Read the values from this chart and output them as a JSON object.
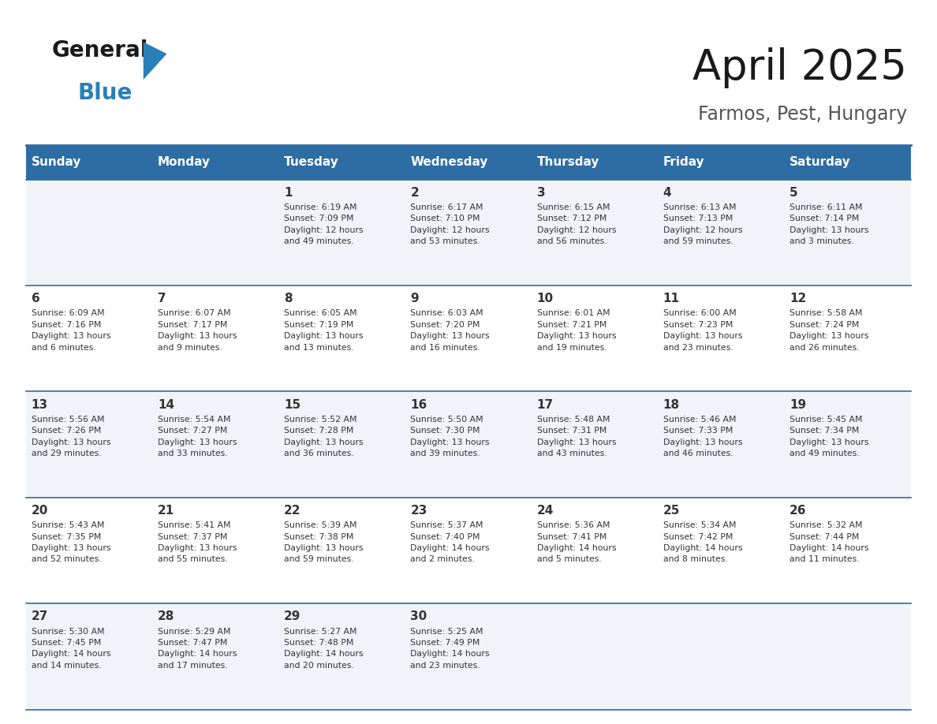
{
  "title": "April 2025",
  "subtitle": "Farmos, Pest, Hungary",
  "header_bg": "#2E6DA4",
  "header_text_color": "#FFFFFF",
  "days_of_week": [
    "Sunday",
    "Monday",
    "Tuesday",
    "Wednesday",
    "Thursday",
    "Friday",
    "Saturday"
  ],
  "row_bg_light": "#F0F4F8",
  "row_bg_white": "#FFFFFF",
  "cell_border_color": "#2E6DA4",
  "text_color": "#333333",
  "calendar": [
    [
      {
        "day": "",
        "info": ""
      },
      {
        "day": "",
        "info": ""
      },
      {
        "day": "1",
        "info": "Sunrise: 6:19 AM\nSunset: 7:09 PM\nDaylight: 12 hours\nand 49 minutes."
      },
      {
        "day": "2",
        "info": "Sunrise: 6:17 AM\nSunset: 7:10 PM\nDaylight: 12 hours\nand 53 minutes."
      },
      {
        "day": "3",
        "info": "Sunrise: 6:15 AM\nSunset: 7:12 PM\nDaylight: 12 hours\nand 56 minutes."
      },
      {
        "day": "4",
        "info": "Sunrise: 6:13 AM\nSunset: 7:13 PM\nDaylight: 12 hours\nand 59 minutes."
      },
      {
        "day": "5",
        "info": "Sunrise: 6:11 AM\nSunset: 7:14 PM\nDaylight: 13 hours\nand 3 minutes."
      }
    ],
    [
      {
        "day": "6",
        "info": "Sunrise: 6:09 AM\nSunset: 7:16 PM\nDaylight: 13 hours\nand 6 minutes."
      },
      {
        "day": "7",
        "info": "Sunrise: 6:07 AM\nSunset: 7:17 PM\nDaylight: 13 hours\nand 9 minutes."
      },
      {
        "day": "8",
        "info": "Sunrise: 6:05 AM\nSunset: 7:19 PM\nDaylight: 13 hours\nand 13 minutes."
      },
      {
        "day": "9",
        "info": "Sunrise: 6:03 AM\nSunset: 7:20 PM\nDaylight: 13 hours\nand 16 minutes."
      },
      {
        "day": "10",
        "info": "Sunrise: 6:01 AM\nSunset: 7:21 PM\nDaylight: 13 hours\nand 19 minutes."
      },
      {
        "day": "11",
        "info": "Sunrise: 6:00 AM\nSunset: 7:23 PM\nDaylight: 13 hours\nand 23 minutes."
      },
      {
        "day": "12",
        "info": "Sunrise: 5:58 AM\nSunset: 7:24 PM\nDaylight: 13 hours\nand 26 minutes."
      }
    ],
    [
      {
        "day": "13",
        "info": "Sunrise: 5:56 AM\nSunset: 7:26 PM\nDaylight: 13 hours\nand 29 minutes."
      },
      {
        "day": "14",
        "info": "Sunrise: 5:54 AM\nSunset: 7:27 PM\nDaylight: 13 hours\nand 33 minutes."
      },
      {
        "day": "15",
        "info": "Sunrise: 5:52 AM\nSunset: 7:28 PM\nDaylight: 13 hours\nand 36 minutes."
      },
      {
        "day": "16",
        "info": "Sunrise: 5:50 AM\nSunset: 7:30 PM\nDaylight: 13 hours\nand 39 minutes."
      },
      {
        "day": "17",
        "info": "Sunrise: 5:48 AM\nSunset: 7:31 PM\nDaylight: 13 hours\nand 43 minutes."
      },
      {
        "day": "18",
        "info": "Sunrise: 5:46 AM\nSunset: 7:33 PM\nDaylight: 13 hours\nand 46 minutes."
      },
      {
        "day": "19",
        "info": "Sunrise: 5:45 AM\nSunset: 7:34 PM\nDaylight: 13 hours\nand 49 minutes."
      }
    ],
    [
      {
        "day": "20",
        "info": "Sunrise: 5:43 AM\nSunset: 7:35 PM\nDaylight: 13 hours\nand 52 minutes."
      },
      {
        "day": "21",
        "info": "Sunrise: 5:41 AM\nSunset: 7:37 PM\nDaylight: 13 hours\nand 55 minutes."
      },
      {
        "day": "22",
        "info": "Sunrise: 5:39 AM\nSunset: 7:38 PM\nDaylight: 13 hours\nand 59 minutes."
      },
      {
        "day": "23",
        "info": "Sunrise: 5:37 AM\nSunset: 7:40 PM\nDaylight: 14 hours\nand 2 minutes."
      },
      {
        "day": "24",
        "info": "Sunrise: 5:36 AM\nSunset: 7:41 PM\nDaylight: 14 hours\nand 5 minutes."
      },
      {
        "day": "25",
        "info": "Sunrise: 5:34 AM\nSunset: 7:42 PM\nDaylight: 14 hours\nand 8 minutes."
      },
      {
        "day": "26",
        "info": "Sunrise: 5:32 AM\nSunset: 7:44 PM\nDaylight: 14 hours\nand 11 minutes."
      }
    ],
    [
      {
        "day": "27",
        "info": "Sunrise: 5:30 AM\nSunset: 7:45 PM\nDaylight: 14 hours\nand 14 minutes."
      },
      {
        "day": "28",
        "info": "Sunrise: 5:29 AM\nSunset: 7:47 PM\nDaylight: 14 hours\nand 17 minutes."
      },
      {
        "day": "29",
        "info": "Sunrise: 5:27 AM\nSunset: 7:48 PM\nDaylight: 14 hours\nand 20 minutes."
      },
      {
        "day": "30",
        "info": "Sunrise: 5:25 AM\nSunset: 7:49 PM\nDaylight: 14 hours\nand 23 minutes."
      },
      {
        "day": "",
        "info": ""
      },
      {
        "day": "",
        "info": ""
      },
      {
        "day": "",
        "info": ""
      }
    ]
  ],
  "logo_color_general": "#1a1a1a",
  "logo_color_blue": "#2980B9",
  "logo_triangle_color": "#2980B9",
  "fig_width": 11.88,
  "fig_height": 9.18,
  "dpi": 100
}
